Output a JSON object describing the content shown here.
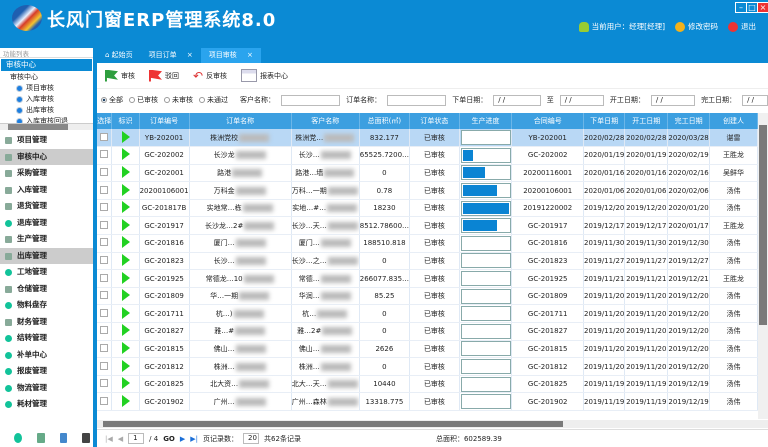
{
  "app": {
    "title": "长风门窗ERP管理系统8.0",
    "user": "当前用户：经理[经理]",
    "change_pwd": "修改密码",
    "logout": "退出"
  },
  "colors": {
    "brand": "#0b8ad4",
    "header_row": "#3c9fe0",
    "progress": "#0a84d3",
    "flag_green": "#2e9e3e",
    "flag_red": "#e33"
  },
  "sidebar": {
    "func_list": "功能列表",
    "audit_header": "审核中心",
    "tree": [
      "审核中心",
      "项目审核",
      "入库审核",
      "出库审核",
      "入库审核回退"
    ],
    "items": [
      {
        "label": "项目管理",
        "icon": "book-icon"
      },
      {
        "label": "审核中心",
        "icon": "audit-icon",
        "selected": true
      },
      {
        "label": "采购管理",
        "icon": "cart-icon"
      },
      {
        "label": "入库管理",
        "icon": "cart-in-icon"
      },
      {
        "label": "退货管理",
        "icon": "cart-return-icon"
      },
      {
        "label": "退库管理",
        "icon": "dot-icon"
      },
      {
        "label": "生产管理",
        "icon": "production-icon"
      },
      {
        "label": "出库管理",
        "icon": "cart-out-icon",
        "selected": true
      },
      {
        "label": "工地管理",
        "icon": "dot-icon"
      },
      {
        "label": "仓储管理",
        "icon": "warehouse-icon"
      },
      {
        "label": "物料盘存",
        "icon": "dot-icon"
      },
      {
        "label": "财务管理",
        "icon": "finance-icon"
      },
      {
        "label": "结转管理",
        "icon": "dot-icon"
      },
      {
        "label": "补单中心",
        "icon": "dot-icon"
      },
      {
        "label": "报废管理",
        "icon": "dot-icon"
      },
      {
        "label": "物流管理",
        "icon": "dot-icon"
      },
      {
        "label": "耗材管理",
        "icon": "dot-icon"
      }
    ]
  },
  "tabs": [
    {
      "label": "起始页"
    },
    {
      "label": "项目订单"
    },
    {
      "label": "项目审核",
      "active": true
    }
  ],
  "toolbar": {
    "approve": "审核",
    "reject": "驳回",
    "unapprove": "反审核",
    "report": "报表中心"
  },
  "filter": {
    "radios": [
      "全部",
      "已审核",
      "未审核",
      "未通过"
    ],
    "selected": "全部",
    "customer_label": "客户名称：",
    "order_label": "订单名称：",
    "order_date_label": "下单日期：",
    "to_label": "至",
    "start_date_label": "开工日期：",
    "end_date_label": "完工日期：",
    "date_placeholder": "/ /"
  },
  "table": {
    "columns": [
      "选择",
      "标识",
      "订单编号",
      "订单名称",
      "客户名称",
      "总面积(㎡)",
      "订单状态",
      "生产进度",
      "合同编号",
      "下单日期",
      "开工日期",
      "完工日期",
      "创建人"
    ],
    "rows": [
      [
        "YB-202001",
        "株洲党校",
        "株洲党…",
        "832.177",
        "已审核",
        0,
        "YB-202001",
        "2020/02/28",
        "2020/02/28",
        "2020/03/28",
        "谌雷"
      ],
      [
        "GC-202002",
        "长沙龙",
        "长沙…",
        "65525.7200…",
        "已审核",
        0.25,
        "GC-202002",
        "2020/01/19",
        "2020/01/19",
        "2020/02/19",
        "王胜龙"
      ],
      [
        "GC-202001",
        "路港",
        "路港…墙",
        "0",
        "已审核",
        0.5,
        "20200116001",
        "2020/01/16",
        "2020/01/16",
        "2020/02/16",
        "吴鲜华"
      ],
      [
        "20200106001",
        "万科金",
        "万科…一期",
        "0.78",
        "已审核",
        0.75,
        "20200106001",
        "2020/01/06",
        "2020/01/06",
        "2020/02/06",
        "汤伟"
      ],
      [
        "GC-201817B",
        "实地常…栋",
        "实地…#…",
        "18230",
        "已审核",
        1,
        "20191220002",
        "2019/12/20",
        "2019/12/20",
        "2020/01/20",
        "汤伟"
      ],
      [
        "GC-201917",
        "长沙龙…2#",
        "长沙…天…",
        "8512.78600…",
        "已审核",
        0.75,
        "GC-201917",
        "2019/12/17",
        "2019/12/17",
        "2020/01/17",
        "王胜龙"
      ],
      [
        "GC-201816",
        "厦门…",
        "厦门…",
        "188510.818",
        "已审核",
        0,
        "GC-201816",
        "2019/11/30",
        "2019/11/30",
        "2019/12/30",
        "汤伟"
      ],
      [
        "GC-201823",
        "长沙…",
        "长沙…之…",
        "0",
        "已审核",
        0,
        "GC-201823",
        "2019/11/27",
        "2019/11/27",
        "2019/12/27",
        "汤伟"
      ],
      [
        "GC-201925",
        "常德龙…10",
        "常德…",
        "266077.835…",
        "已审核",
        0,
        "GC-201925",
        "2019/11/21",
        "2019/11/21",
        "2019/12/21",
        "王胜龙"
      ],
      [
        "GC-201809",
        "华…一期",
        "华润…",
        "85.25",
        "已审核",
        0,
        "GC-201809",
        "2019/11/20",
        "2019/11/20",
        "2019/12/20",
        "汤伟"
      ],
      [
        "GC-201711",
        "杭…)",
        "杭…",
        "0",
        "已审核",
        0,
        "GC-201711",
        "2019/11/20",
        "2019/11/20",
        "2019/12/20",
        "汤伟"
      ],
      [
        "GC-201827",
        "雅…#",
        "雅…2#",
        "0",
        "已审核",
        0,
        "GC-201827",
        "2019/11/20",
        "2019/11/20",
        "2019/12/20",
        "汤伟"
      ],
      [
        "GC-201815",
        "佛山…",
        "佛山…",
        "2626",
        "已审核",
        0,
        "GC-201815",
        "2019/11/20",
        "2019/11/20",
        "2019/12/20",
        "汤伟"
      ],
      [
        "GC-201812",
        "株洲…",
        "株洲…",
        "0",
        "已审核",
        0,
        "GC-201812",
        "2019/11/20",
        "2019/11/20",
        "2019/12/20",
        "汤伟"
      ],
      [
        "GC-201825",
        "北大资…",
        "北大…天…",
        "10440",
        "已审核",
        0,
        "GC-201825",
        "2019/11/19",
        "2019/11/19",
        "2019/12/19",
        "汤伟"
      ],
      [
        "GC-201902",
        "广州…",
        "广州…森林",
        "13318.775",
        "已审核",
        0,
        "GC-201902",
        "2019/11/19",
        "2019/11/19",
        "2019/12/19",
        "汤伟"
      ]
    ]
  },
  "pager": {
    "page": "1",
    "total_pages": "/ 4",
    "go": "GO",
    "page_size_label": "页记录数：",
    "page_size": "20",
    "total": "共62条记录",
    "total_area": "总面积：602589.39"
  }
}
